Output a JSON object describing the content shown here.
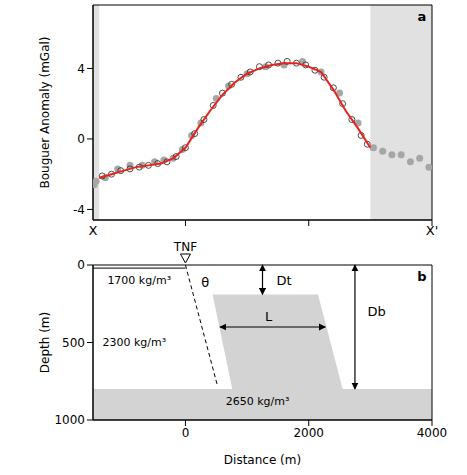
{
  "chart_data": [
    {
      "panel": "a",
      "type": "scatter",
      "y_label": "Bouguer Anomaly (mGal)",
      "xlim": [
        -1500,
        4000
      ],
      "xticks": [
        0,
        2000,
        4000
      ],
      "ylim": [
        -4.6,
        7.6
      ],
      "yticks": [
        -4,
        0,
        4
      ],
      "tick_labels": "y",
      "shaded": [
        [
          -1500,
          -1400
        ],
        [
          3000,
          4000
        ]
      ],
      "endpoint_labels": [
        "X",
        "X'"
      ],
      "series": [
        {
          "type": "scatter",
          "marker": "circle",
          "color": "#a6a6a6",
          "x": [
            -1480,
            -1450,
            -1300,
            -1100,
            -900,
            -700,
            -500,
            -350,
            -200,
            -50,
            100,
            250,
            500,
            700,
            1000,
            1300,
            1600,
            1900,
            2200,
            2500,
            2800,
            3050,
            3200,
            3350,
            3500,
            3650,
            3800,
            3950
          ],
          "values": [
            -2.6,
            -2.4,
            -2.2,
            -1.7,
            -1.5,
            -1.5,
            -1.3,
            -1.2,
            -1.1,
            -0.6,
            0.2,
            0.9,
            2.3,
            3.0,
            3.7,
            4.1,
            4.2,
            4.4,
            3.8,
            2.6,
            0.9,
            -0.5,
            -0.7,
            -0.9,
            -0.9,
            -1.3,
            -1.1,
            -1.6
          ]
        },
        {
          "type": "scatter",
          "marker": "open_circle",
          "color": "#222222",
          "x": [
            -1350,
            -1200,
            -1050,
            -900,
            -750,
            -600,
            -450,
            -300,
            -150,
            0,
            150,
            300,
            450,
            600,
            750,
            900,
            1050,
            1200,
            1350,
            1500,
            1650,
            1800,
            1950,
            2100,
            2250,
            2400,
            2550,
            2700,
            2850,
            2950
          ],
          "values": [
            -2.1,
            -2.0,
            -1.8,
            -1.7,
            -1.6,
            -1.5,
            -1.4,
            -1.3,
            -1.0,
            -0.5,
            0.3,
            1.1,
            1.9,
            2.6,
            3.1,
            3.5,
            3.8,
            4.1,
            4.2,
            4.3,
            4.4,
            4.3,
            4.2,
            3.9,
            3.5,
            2.9,
            2.0,
            1.1,
            0.2,
            -0.3
          ]
        },
        {
          "type": "line",
          "line_style": "solid",
          "color": "#e8211c",
          "x": [
            -1400,
            -1200,
            -1000,
            -800,
            -600,
            -400,
            -200,
            0,
            200,
            400,
            600,
            800,
            1000,
            1200,
            1400,
            1600,
            1800,
            2000,
            2200,
            2400,
            2600,
            2800,
            3000
          ],
          "values": [
            -2.2,
            -2.0,
            -1.8,
            -1.6,
            -1.5,
            -1.4,
            -1.1,
            -0.5,
            0.6,
            1.6,
            2.5,
            3.2,
            3.7,
            4.0,
            4.2,
            4.3,
            4.3,
            4.1,
            3.8,
            2.8,
            1.6,
            0.6,
            -0.5
          ]
        }
      ]
    },
    {
      "panel": "b",
      "type": "section",
      "x_label": "Distance (m)",
      "y_label": "Depth (m)",
      "xlim": [
        -1500,
        4000
      ],
      "xticks": [
        0,
        2000,
        4000
      ],
      "ylim": [
        0,
        1000
      ],
      "yticks": [
        0,
        500,
        1000
      ],
      "basement": {
        "color": "#d3d3d3",
        "x": [
          -1500,
          4000
        ],
        "depth": [
          800,
          1000
        ]
      },
      "block": {
        "color": "#d3d3d3",
        "x": [
          440,
          760,
          2150,
          2550
        ],
        "top": [
          190,
          190,
          190,
          800
        ],
        "bottom": [
          190,
          800,
          800,
          800
        ]
      },
      "lines": [
        {
          "x": [
            -1500,
            0
          ],
          "y": [
            20,
            20
          ],
          "line_style": "solid"
        },
        {
          "x": [
            0,
            520
          ],
          "y": [
            0,
            780
          ],
          "line_style": "dashed"
        }
      ],
      "dimensions": [
        {
          "x": [
            1250,
            1250
          ],
          "y": [
            0,
            190
          ]
        },
        {
          "x": [
            560,
            2270
          ],
          "y": [
            400,
            400
          ]
        },
        {
          "x": [
            2750,
            2750
          ],
          "y": [
            0,
            800
          ]
        }
      ],
      "labels": [
        {
          "text": "1700 kg/m³",
          "x": -750,
          "y": 100
        },
        {
          "text": "2300 kg/m³",
          "x": -830,
          "y": 500
        },
        {
          "text": "2650 kg/m³",
          "x": 1170,
          "y": 880
        },
        {
          "text": "θ",
          "x": 320,
          "y": 110
        },
        {
          "text": "Dt",
          "x": 1600,
          "y": 100
        },
        {
          "text": "L",
          "x": 1350,
          "y": 330
        },
        {
          "text": "Db",
          "x": 3100,
          "y": 300
        }
      ],
      "fault": {
        "label": "TNF",
        "x": 0
      }
    }
  ]
}
